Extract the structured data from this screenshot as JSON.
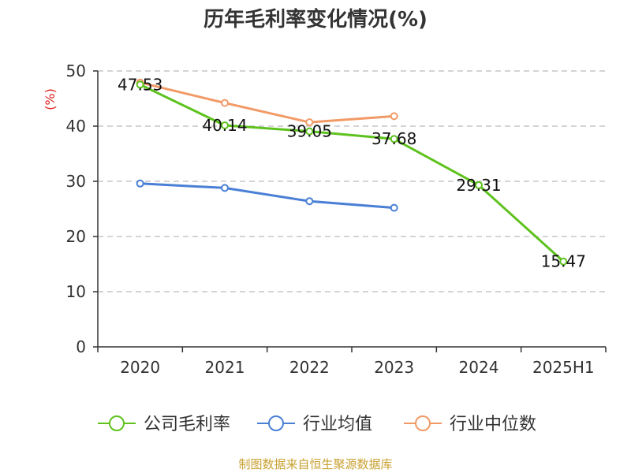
{
  "chart_data": {
    "type": "line",
    "title": "历年毛利率变化情况(%)",
    "ylabel": "(%)",
    "xlabel": "",
    "categories": [
      "2020",
      "2021",
      "2022",
      "2023",
      "2024",
      "2025H1"
    ],
    "ylim": [
      0,
      50
    ],
    "yticks": [
      0,
      10,
      20,
      30,
      40,
      50
    ],
    "grid": true,
    "legend_position": "bottom",
    "series": [
      {
        "name": "公司毛利率",
        "color": "#5ec21e",
        "values": [
          47.53,
          40.14,
          39.05,
          37.68,
          29.31,
          15.47
        ],
        "labels": [
          "47.53",
          "40.14",
          "39.05",
          "37.68",
          "29.31",
          "15.47"
        ]
      },
      {
        "name": "行业均值",
        "color": "#4a7fd6",
        "values": [
          29.6,
          28.8,
          26.4,
          25.2,
          null,
          null
        ]
      },
      {
        "name": "行业中位数",
        "color": "#f29a66",
        "values": [
          47.9,
          44.2,
          40.7,
          41.8,
          null,
          null
        ]
      }
    ],
    "source": "制图数据来自恒生聚源数据库"
  }
}
